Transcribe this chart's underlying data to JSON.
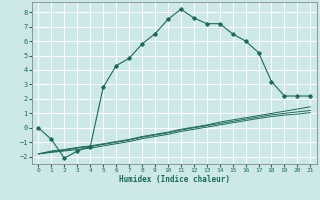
{
  "xlabel": "Humidex (Indice chaleur)",
  "bg_color": "#cce8e8",
  "grid_color": "#ffffff",
  "line_color": "#1a6b5a",
  "x_data": [
    0,
    1,
    2,
    3,
    4,
    5,
    6,
    7,
    8,
    9,
    10,
    11,
    12,
    13,
    14,
    15,
    16,
    17,
    18,
    19,
    20,
    21
  ],
  "y_main": [
    0.0,
    -0.8,
    -2.1,
    -1.6,
    -1.3,
    2.8,
    4.3,
    4.8,
    5.8,
    6.5,
    7.5,
    8.2,
    7.6,
    7.2,
    7.2,
    6.5,
    6.0,
    5.2,
    3.2,
    2.2,
    2.2,
    2.2
  ],
  "y_line1": [
    -1.8,
    -1.6,
    -1.5,
    -1.35,
    -1.25,
    -1.1,
    -0.95,
    -0.8,
    -0.6,
    -0.45,
    -0.3,
    -0.1,
    0.05,
    0.2,
    0.4,
    0.55,
    0.7,
    0.85,
    1.0,
    1.15,
    1.3,
    1.45
  ],
  "y_line2": [
    -1.8,
    -1.65,
    -1.55,
    -1.4,
    -1.3,
    -1.15,
    -1.0,
    -0.85,
    -0.65,
    -0.5,
    -0.35,
    -0.15,
    0.0,
    0.15,
    0.3,
    0.45,
    0.6,
    0.75,
    0.9,
    1.0,
    1.1,
    1.2
  ],
  "y_line3": [
    -1.8,
    -1.7,
    -1.6,
    -1.5,
    -1.4,
    -1.25,
    -1.1,
    -0.95,
    -0.75,
    -0.6,
    -0.45,
    -0.25,
    -0.1,
    0.05,
    0.2,
    0.35,
    0.5,
    0.65,
    0.78,
    0.88,
    0.95,
    1.05
  ],
  "ylim": [
    -2.5,
    8.7
  ],
  "xlim": [
    -0.5,
    21.5
  ],
  "yticks": [
    -2,
    -1,
    0,
    1,
    2,
    3,
    4,
    5,
    6,
    7,
    8
  ],
  "xticks": [
    0,
    1,
    2,
    3,
    4,
    5,
    6,
    7,
    8,
    9,
    10,
    11,
    12,
    13,
    14,
    15,
    16,
    17,
    18,
    19,
    20,
    21
  ]
}
